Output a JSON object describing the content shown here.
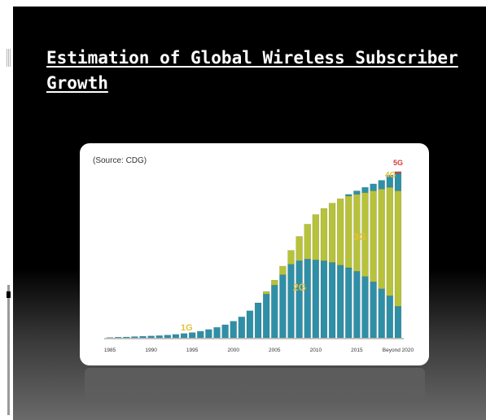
{
  "slide": {
    "title": "Estimation of Global Wireless Subscriber Growth"
  },
  "chart_data": {
    "type": "bar",
    "source_note": "(Source: CDG)",
    "x_tick_labels": [
      "1985",
      "1990",
      "1995",
      "2000",
      "2005",
      "2010",
      "2015",
      "Beyond 2020"
    ],
    "annotations": [
      "1G",
      "2G",
      "3G",
      "4G",
      "5G"
    ],
    "legend": "none",
    "grid": false,
    "stack_order": [
      "1G",
      "2G",
      "3G",
      "4G",
      "5G"
    ],
    "series_colors": {
      "1G": "#2f8fa6",
      "2G": "#2f8fa6",
      "3G": "#b7c23a",
      "4G": "#2f8fa6",
      "5G": "#d63b3b"
    },
    "annotation_colors": {
      "1G": "#e3c23c",
      "2G": "#e3c23c",
      "3G": "#e3c23c",
      "4G": "#e3c23c",
      "5G": "#d63b3b"
    },
    "ylim": [
      0,
      100
    ],
    "stacks": [
      {
        "tick": "1985",
        "values": {
          "2G": 0.2,
          "3G": 0,
          "4G": 0,
          "5G": 0
        }
      },
      {
        "tick": "",
        "values": {
          "2G": 0.4,
          "3G": 0,
          "4G": 0,
          "5G": 0
        }
      },
      {
        "tick": "",
        "values": {
          "2G": 0.5,
          "3G": 0,
          "4G": 0,
          "5G": 0
        }
      },
      {
        "tick": "",
        "values": {
          "2G": 0.7,
          "3G": 0,
          "4G": 0,
          "5G": 0
        }
      },
      {
        "tick": "",
        "values": {
          "2G": 0.9,
          "3G": 0,
          "4G": 0,
          "5G": 0
        }
      },
      {
        "tick": "1990",
        "values": {
          "2G": 1.1,
          "3G": 0,
          "4G": 0,
          "5G": 0
        }
      },
      {
        "tick": "",
        "values": {
          "2G": 1.3,
          "3G": 0,
          "4G": 0,
          "5G": 0
        }
      },
      {
        "tick": "",
        "values": {
          "2G": 1.6,
          "3G": 0,
          "4G": 0,
          "5G": 0
        }
      },
      {
        "tick": "",
        "values": {
          "2G": 2.0,
          "3G": 0,
          "4G": 0,
          "5G": 0
        }
      },
      {
        "tick": "",
        "values": {
          "2G": 2.5,
          "3G": 0,
          "4G": 0,
          "5G": 0
        }
      },
      {
        "tick": "1995",
        "values": {
          "2G": 3.0,
          "3G": 0,
          "4G": 0,
          "5G": 0
        }
      },
      {
        "tick": "",
        "values": {
          "2G": 3.8,
          "3G": 0,
          "4G": 0,
          "5G": 0
        }
      },
      {
        "tick": "",
        "values": {
          "2G": 4.8,
          "3G": 0,
          "4G": 0,
          "5G": 0
        }
      },
      {
        "tick": "",
        "values": {
          "2G": 6.0,
          "3G": 0,
          "4G": 0,
          "5G": 0
        }
      },
      {
        "tick": "",
        "values": {
          "2G": 7.5,
          "3G": 0,
          "4G": 0,
          "5G": 0
        }
      },
      {
        "tick": "2000",
        "values": {
          "2G": 9.5,
          "3G": 0,
          "4G": 0,
          "5G": 0
        }
      },
      {
        "tick": "",
        "values": {
          "2G": 12.0,
          "3G": 0,
          "4G": 0,
          "5G": 0
        }
      },
      {
        "tick": "",
        "values": {
          "2G": 15.5,
          "3G": 0,
          "4G": 0,
          "5G": 0
        }
      },
      {
        "tick": "",
        "values": {
          "2G": 20.0,
          "3G": 0,
          "4G": 0,
          "5G": 0
        }
      },
      {
        "tick": "",
        "values": {
          "2G": 25.0,
          "3G": 1.5,
          "4G": 0,
          "5G": 0
        }
      },
      {
        "tick": "2005",
        "values": {
          "2G": 30.0,
          "3G": 3.0,
          "4G": 0,
          "5G": 0
        }
      },
      {
        "tick": "",
        "values": {
          "2G": 36.0,
          "3G": 5.0,
          "4G": 0,
          "5G": 0
        }
      },
      {
        "tick": "",
        "values": {
          "2G": 42.0,
          "3G": 8.0,
          "4G": 0,
          "5G": 0
        }
      },
      {
        "tick": "",
        "values": {
          "2G": 44.0,
          "3G": 14.0,
          "4G": 0,
          "5G": 0
        }
      },
      {
        "tick": "",
        "values": {
          "2G": 45.0,
          "3G": 20.0,
          "4G": 0,
          "5G": 0
        }
      },
      {
        "tick": "2010",
        "values": {
          "2G": 44.5,
          "3G": 26.0,
          "4G": 0,
          "5G": 0
        }
      },
      {
        "tick": "",
        "values": {
          "2G": 44.0,
          "3G": 30.0,
          "4G": 0,
          "5G": 0
        }
      },
      {
        "tick": "",
        "values": {
          "2G": 43.0,
          "3G": 34.0,
          "4G": 0,
          "5G": 0
        }
      },
      {
        "tick": "",
        "values": {
          "2G": 41.5,
          "3G": 38.0,
          "4G": 0,
          "5G": 0
        }
      },
      {
        "tick": "",
        "values": {
          "2G": 40.0,
          "3G": 41.0,
          "4G": 1.0,
          "5G": 0
        }
      },
      {
        "tick": "2015",
        "values": {
          "2G": 38.0,
          "3G": 44.0,
          "4G": 2.0,
          "5G": 0
        }
      },
      {
        "tick": "",
        "values": {
          "2G": 35.0,
          "3G": 48.0,
          "4G": 3.0,
          "5G": 0
        }
      },
      {
        "tick": "",
        "values": {
          "2G": 32.0,
          "3G": 52.0,
          "4G": 4.0,
          "5G": 0
        }
      },
      {
        "tick": "",
        "values": {
          "2G": 28.0,
          "3G": 57.0,
          "4G": 5.0,
          "5G": 0
        }
      },
      {
        "tick": "",
        "values": {
          "2G": 24.0,
          "3G": 62.0,
          "4G": 7.0,
          "5G": 0
        }
      },
      {
        "tick": "Beyond 2020",
        "values": {
          "2G": 18.0,
          "3G": 66.0,
          "4G": 10.0,
          "5G": 1.0
        }
      }
    ]
  }
}
